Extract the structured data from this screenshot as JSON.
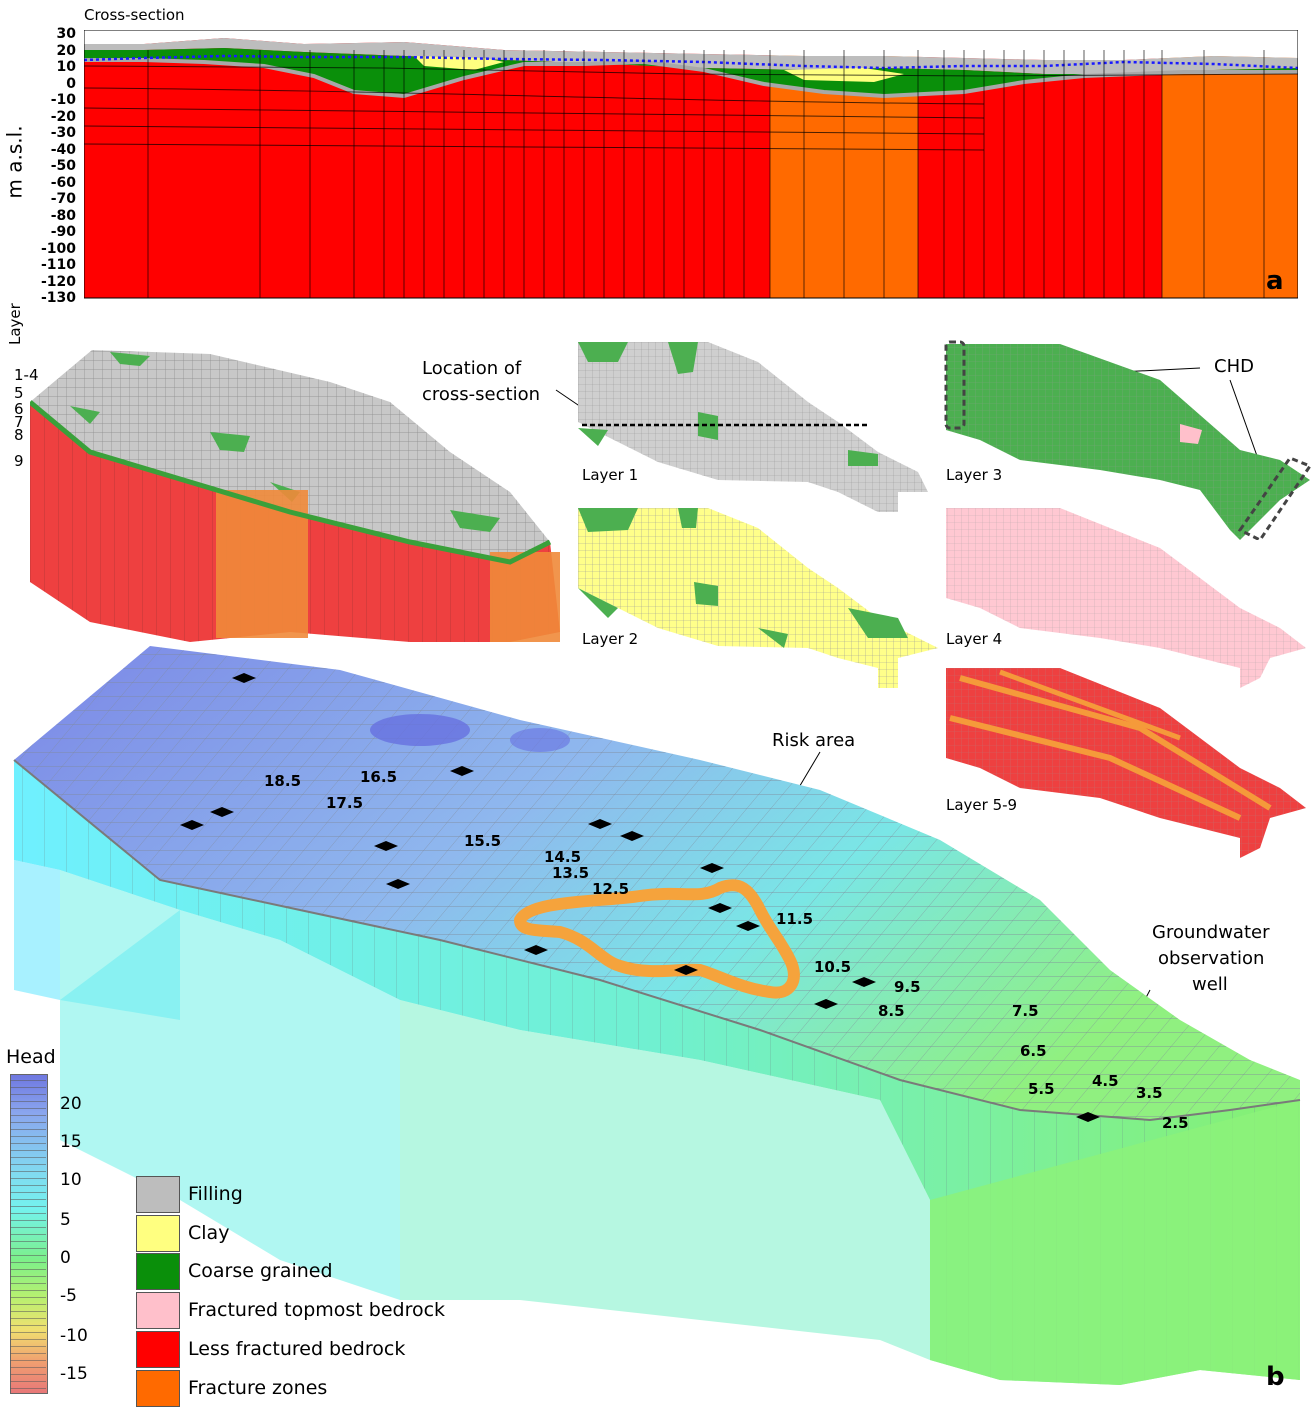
{
  "panel_a": {
    "title": "Cross-section",
    "ylabel": "m a.s.l.",
    "y_ticks": [
      "30",
      "20",
      "10",
      "0",
      "-10",
      "-20",
      "-30",
      "-40",
      "-50",
      "-60",
      "-70",
      "-80",
      "-90",
      "-100",
      "-110",
      "-120",
      "-130"
    ],
    "letter": "a"
  },
  "panel_b": {
    "letter": "b",
    "layer_axis_title": "Layer",
    "layer_labels": [
      "1-4",
      "5",
      "6",
      "7",
      "8",
      "9"
    ],
    "annotations": {
      "location": [
        "Location of",
        "cross-section"
      ],
      "chd": "CHD",
      "risk_area": "Risk area",
      "well": [
        "Groundwater",
        "observation",
        "well"
      ]
    },
    "layer_maps": [
      "Layer 1",
      "Layer 2",
      "Layer 3",
      "Layer 4",
      "Layer 5-9"
    ],
    "contour_labels": [
      "18.5",
      "16.5",
      "17.5",
      "15.5",
      "14.5",
      "13.5",
      "12.5",
      "11.5",
      "10.5",
      "9.5",
      "8.5",
      "7.5",
      "6.5",
      "5.5",
      "4.5",
      "3.5",
      "2.5"
    ]
  },
  "head_bar": {
    "title": "Head",
    "ticks": [
      "20",
      "15",
      "10",
      "5",
      "0",
      "-5",
      "-10",
      "-15"
    ]
  },
  "legend": [
    {
      "label": "Filling",
      "color": "#bdbdbd"
    },
    {
      "label": "Clay",
      "color": "#ffff80"
    },
    {
      "label": "Coarse grained",
      "color": "#0a8f0a"
    },
    {
      "label": "Fractured topmost bedrock",
      "color": "#ffc0cb"
    },
    {
      "label": "Less fractured bedrock",
      "color": "#ff0000"
    },
    {
      "label": "Fracture zones",
      "color": "#ff6a00"
    }
  ],
  "colors": {
    "bedrock": "#ff0000",
    "fracture": "#ff6a00",
    "coarse": "#0a8f0a",
    "clay": "#ffff80",
    "filling": "#bdbdbd",
    "pink": "#ffc0cb",
    "head_high": "#7b86e6",
    "head_mid": "#6ff0f0",
    "head_low": "#80f060",
    "risk": "#f5a33c",
    "water_table": "#1a1aff"
  }
}
